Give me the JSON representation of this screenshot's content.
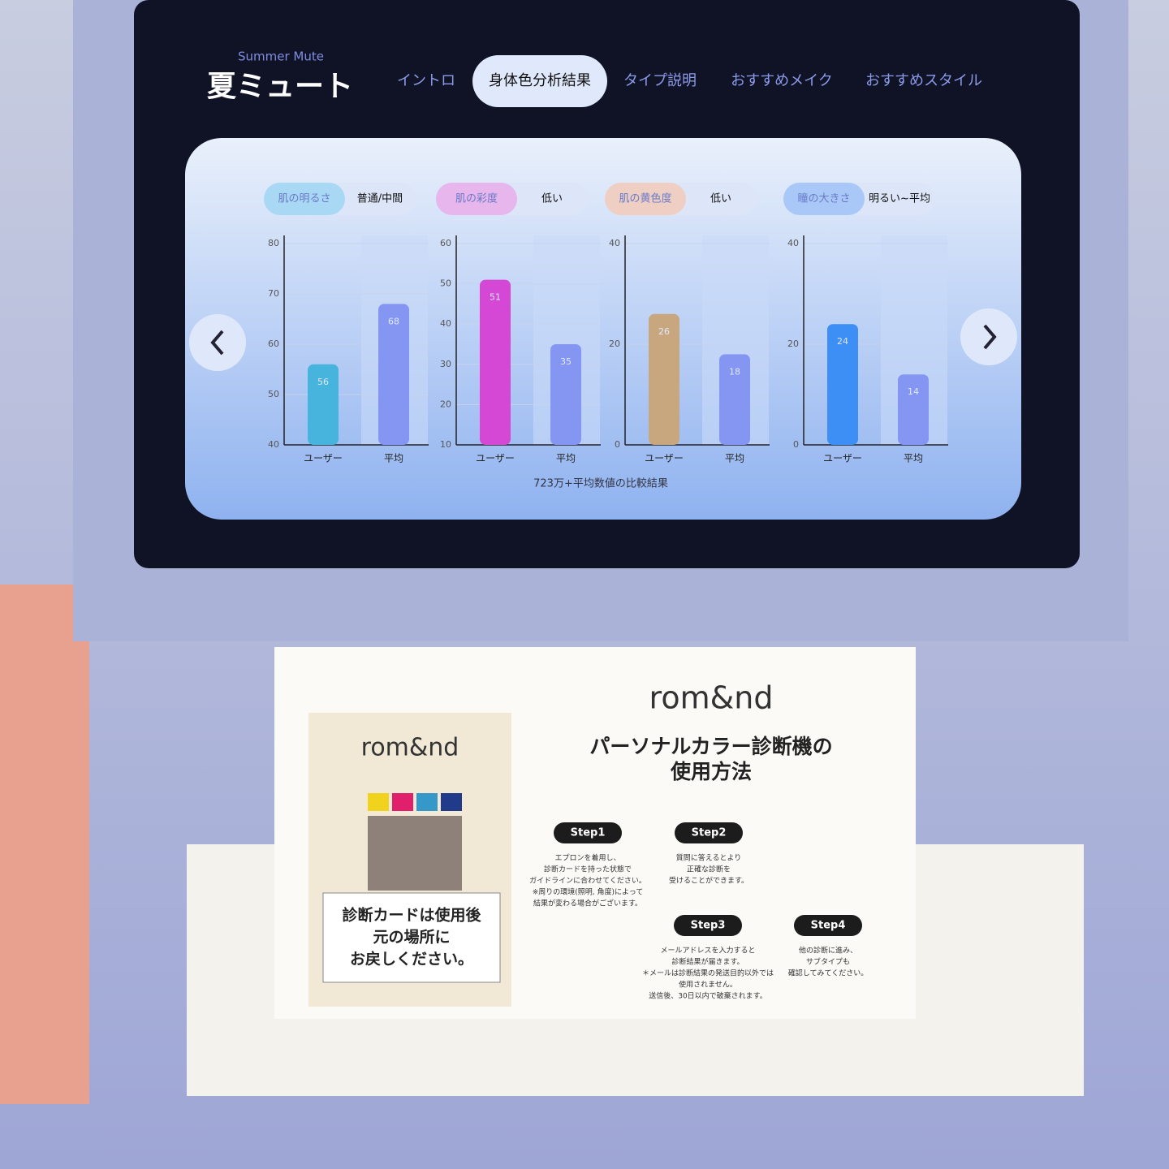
{
  "header": {
    "subtitle": "Summer Mute",
    "title": "夏ミュート"
  },
  "tabs": [
    "イントロ",
    "身体色分析結果",
    "タイプ説明",
    "おすすめメイク",
    "おすすめスタイル"
  ],
  "active_tab": 1,
  "panels": [
    {
      "label": "肌の明るさ",
      "level": "普通/中間",
      "chart": {
        "type": "bar",
        "categories": [
          "ユーザー",
          "平均"
        ],
        "values": [
          56,
          68
        ],
        "ylim": [
          40,
          80
        ],
        "yticks": [
          40,
          50,
          60,
          70,
          80
        ],
        "colors": [
          "#46b4dc",
          "#8596f2"
        ]
      }
    },
    {
      "label": "肌の彩度",
      "level": "低い",
      "chart": {
        "type": "bar",
        "categories": [
          "ユーザー",
          "平均"
        ],
        "values": [
          51,
          35
        ],
        "ylim": [
          10,
          60
        ],
        "yticks": [
          10,
          20,
          30,
          40,
          50,
          60
        ],
        "colors": [
          "#d548d6",
          "#8596f2"
        ]
      }
    },
    {
      "label": "肌の黄色度",
      "level": "低い",
      "chart": {
        "type": "bar",
        "categories": [
          "ユーザー",
          "平均"
        ],
        "values": [
          26,
          18
        ],
        "ylim": [
          0,
          40
        ],
        "yticks": [
          0,
          20,
          40
        ],
        "colors": [
          "#c9a77e",
          "#8596f2"
        ]
      }
    },
    {
      "label": "瞳の大きさ",
      "level": "明るい~平均",
      "chart": {
        "type": "bar",
        "categories": [
          "ユーザー",
          "平均"
        ],
        "values": [
          24,
          14
        ],
        "ylim": [
          0,
          40
        ],
        "yticks": [
          0,
          20,
          40
        ],
        "colors": [
          "#3d8ef5",
          "#8596f2"
        ]
      }
    }
  ],
  "footnote": "723万+平均数値の比較結果",
  "card": {
    "brand": "rom&nd",
    "notice": [
      "診断カードは使用後",
      "元の場所に",
      "お戻しください。"
    ]
  },
  "sign": {
    "brand": "rom&nd",
    "title": [
      "パーソナルカラー診断機の",
      "使用方法"
    ],
    "steps": [
      {
        "label": "Step1",
        "text": [
          "エプロンを着用し、",
          "診断カードを持った状態で",
          "ガイドラインに合わせてください。",
          "※周りの環境(照明, 角度)によって",
          "結果が変わる場合がございます。"
        ]
      },
      {
        "label": "Step2",
        "text": [
          "質問に答えるとより",
          "正確な診断を",
          "受けることができます。"
        ]
      },
      {
        "label": "Step3",
        "text": [
          "メールアドレスを入力すると",
          "診断結果が届きます。",
          "＊メールは診断結果の発送目的以外では",
          "使用されません。",
          "送信後、30日以内で破棄されます。"
        ]
      },
      {
        "label": "Step4",
        "text": [
          "他の診断に進み、",
          "サブタイプも",
          "確認してみてください。"
        ]
      }
    ]
  }
}
